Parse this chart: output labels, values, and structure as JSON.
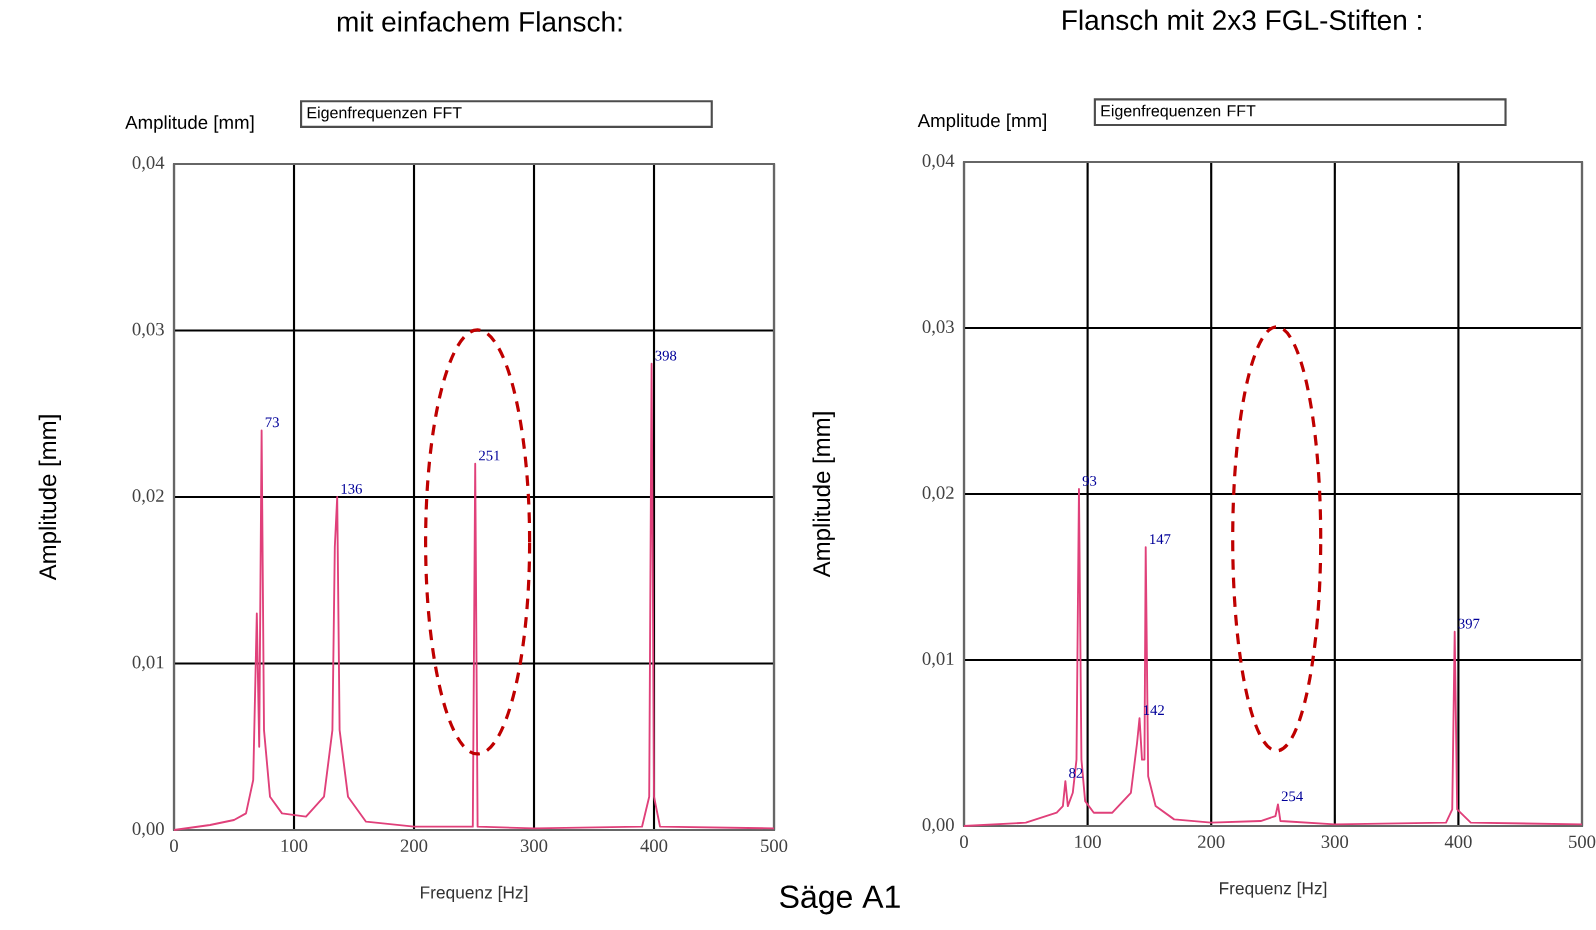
{
  "chart_data": [
    {
      "type": "line",
      "title": "mit einfachem Flansch:",
      "subtitle": "Eigenfrequenzen  FFT",
      "xlabel": "Frequenz [Hz]",
      "ylabel": "Amplitude [mm]",
      "x": [
        0,
        30,
        50,
        60,
        66,
        69,
        71,
        73,
        75,
        80,
        90,
        110,
        125,
        132,
        134,
        136,
        138,
        145,
        160,
        200,
        249,
        251,
        253,
        300,
        390,
        396,
        398,
        400,
        405,
        500
      ],
      "series": [
        {
          "color": "#e0407a",
          "values": [
            0,
            0.0003,
            0.0006,
            0.001,
            0.003,
            0.013,
            0.005,
            0.024,
            0.006,
            0.002,
            0.001,
            0.0008,
            0.002,
            0.006,
            0.017,
            0.02,
            0.006,
            0.002,
            0.0005,
            0.0002,
            0.0002,
            0.022,
            0.0002,
            0.0001,
            0.0002,
            0.002,
            0.028,
            0.002,
            0.0002,
            0.0001
          ]
        }
      ],
      "xlim": [
        0,
        500
      ],
      "xticks": [
        0,
        100,
        200,
        300,
        400,
        500
      ],
      "ylim": [
        0,
        0.04
      ],
      "yticks": [
        {
          "value": 0,
          "label": "0,00"
        },
        {
          "value": 0.01,
          "label": "0,01"
        },
        {
          "value": 0.02,
          "label": "0,02"
        },
        {
          "value": 0.03,
          "label": "0,03"
        },
        {
          "value": 0.04,
          "label": "0,04"
        }
      ],
      "grid": true,
      "marker": "none",
      "line_style": "solid",
      "annotations": [
        "Amplitude [mm]",
        "Säge A1",
        {
          "text": "73",
          "x": 73,
          "y": 0.024
        },
        {
          "text": "136",
          "x": 136,
          "y": 0.02
        },
        {
          "text": "251",
          "x": 251,
          "y": 0.022
        },
        {
          "text": "398",
          "x": 398,
          "y": 0.028
        }
      ]
    },
    {
      "type": "line",
      "title": "Flansch mit 2x3 FGL-Stiften :",
      "subtitle": "Eigenfrequenzen  FFT",
      "xlabel": "Frequenz [Hz]",
      "ylabel": "Amplitude [mm]",
      "x": [
        0,
        50,
        75,
        80,
        82,
        84,
        88,
        91,
        93,
        95,
        98,
        105,
        120,
        135,
        140,
        142,
        144,
        146,
        147,
        149,
        155,
        170,
        200,
        240,
        252,
        254,
        256,
        300,
        390,
        395,
        397,
        399,
        410,
        500
      ],
      "series": [
        {
          "color": "#e0407a",
          "values": [
            0,
            0.0002,
            0.0008,
            0.0012,
            0.0027,
            0.0012,
            0.002,
            0.004,
            0.0203,
            0.004,
            0.0015,
            0.0008,
            0.0008,
            0.002,
            0.005,
            0.0065,
            0.004,
            0.004,
            0.0168,
            0.003,
            0.0012,
            0.0004,
            0.0002,
            0.0003,
            0.0006,
            0.0013,
            0.0003,
            0.0001,
            0.0002,
            0.001,
            0.0117,
            0.001,
            0.0002,
            0.0001
          ]
        }
      ],
      "xlim": [
        0,
        500
      ],
      "xticks": [
        0,
        100,
        200,
        300,
        400,
        500
      ],
      "ylim": [
        0,
        0.04
      ],
      "yticks": [
        {
          "value": 0,
          "label": "0,00"
        },
        {
          "value": 0.01,
          "label": "0,01"
        },
        {
          "value": 0.02,
          "label": "0,02"
        },
        {
          "value": 0.03,
          "label": "0,03"
        },
        {
          "value": 0.04,
          "label": "0,04"
        }
      ],
      "grid": true,
      "marker": "none",
      "line_style": "solid",
      "annotations": [
        "Amplitude [mm]",
        {
          "text": "82",
          "x": 82,
          "y": 0.0027
        },
        {
          "text": "93",
          "x": 93,
          "y": 0.0203
        },
        {
          "text": "142",
          "x": 142,
          "y": 0.0065
        },
        {
          "text": "147",
          "x": 147,
          "y": 0.0168
        },
        {
          "text": "254",
          "x": 254,
          "y": 0.0013
        },
        {
          "text": "397",
          "x": 397,
          "y": 0.0117
        }
      ]
    }
  ]
}
